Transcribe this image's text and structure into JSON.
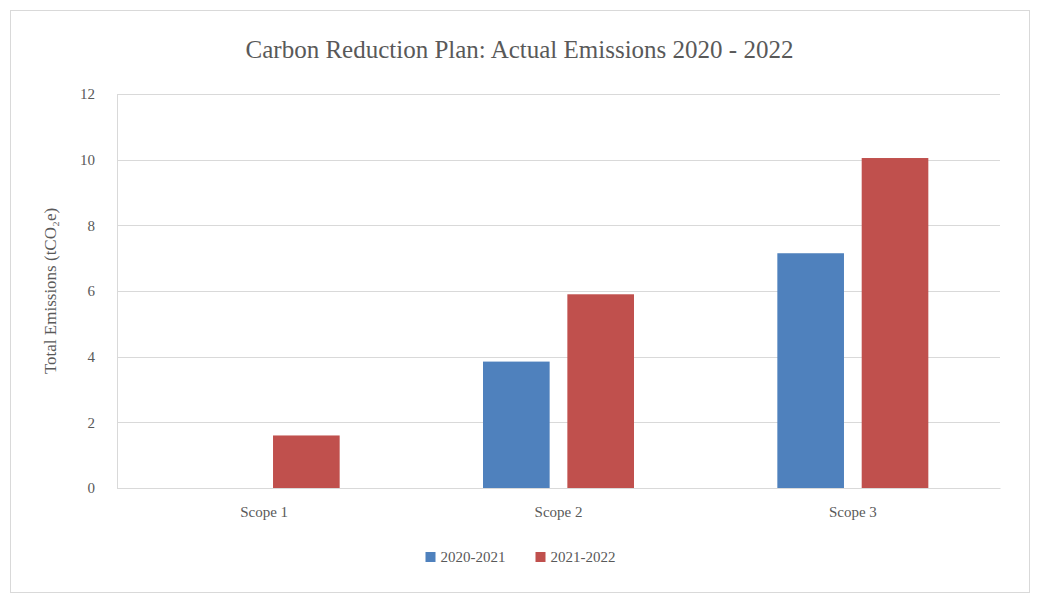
{
  "chart_data": {
    "type": "bar",
    "title": "Carbon Reduction Plan: Actual Emissions 2020 - 2022",
    "y_label": "Total Emissions (tCO₂e)",
    "categories": [
      "Scope 1",
      "Scope 2",
      "Scope 3"
    ],
    "series": [
      {
        "name": "2020-2021",
        "color": "#4f81bd",
        "values": [
          0,
          3.85,
          7.15
        ]
      },
      {
        "name": "2021-2022",
        "color": "#c0504d",
        "values": [
          1.6,
          5.9,
          10.05
        ]
      }
    ],
    "ylim": [
      0,
      12
    ],
    "yticks": [
      0,
      2,
      4,
      6,
      8,
      10,
      12
    ],
    "grid": true,
    "legend": "bottom"
  }
}
